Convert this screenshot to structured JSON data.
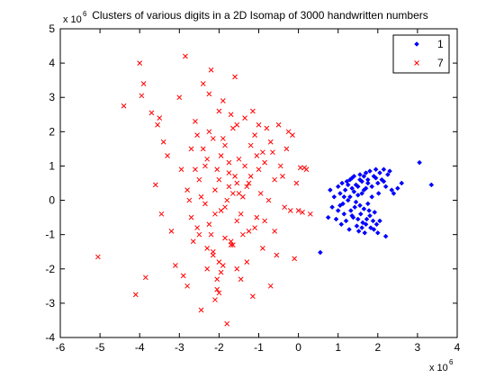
{
  "chart_data": {
    "type": "scatter",
    "title": "Clusters of various digits in a 2D Isomap of 3000 handwritten numbers",
    "xlabel": "",
    "ylabel": "",
    "xlim": [
      -6,
      4
    ],
    "ylim": [
      -4,
      5
    ],
    "x_ticks": [
      -6,
      -5,
      -4,
      -3,
      -2,
      -1,
      0,
      1,
      2,
      3,
      4
    ],
    "y_ticks": [
      -4,
      -3,
      -2,
      -1,
      0,
      1,
      2,
      3,
      4,
      5
    ],
    "x_tick_labels": [
      "-6",
      "-5",
      "-4",
      "-3",
      "-2",
      "-1",
      "0",
      "1",
      "2",
      "3",
      "4"
    ],
    "y_tick_labels": [
      "-4",
      "-3",
      "-2",
      "-1",
      "0",
      "1",
      "2",
      "3",
      "4",
      "5"
    ],
    "x_exponent": {
      "base": "x 10",
      "power": "6"
    },
    "y_exponent": {
      "base": "x 10",
      "power": "6"
    },
    "grid": false,
    "legend_position": "top-right",
    "series": [
      {
        "name": "1",
        "marker": "diamond",
        "color": "#0000ff",
        "points": [
          [
            0.55,
            -1.52
          ],
          [
            0.75,
            -0.5
          ],
          [
            0.8,
            0.3
          ],
          [
            0.85,
            -0.2
          ],
          [
            0.9,
            0.1
          ],
          [
            0.95,
            -0.55
          ],
          [
            1.0,
            0.4
          ],
          [
            1.0,
            -0.3
          ],
          [
            1.05,
            0.2
          ],
          [
            1.08,
            -0.7
          ],
          [
            1.1,
            0.5
          ],
          [
            1.12,
            -0.1
          ],
          [
            1.15,
            -0.4
          ],
          [
            1.18,
            0.3
          ],
          [
            1.2,
            -0.6
          ],
          [
            1.22,
            0.55
          ],
          [
            1.25,
            0.0
          ],
          [
            1.28,
            -0.85
          ],
          [
            1.3,
            0.6
          ],
          [
            1.32,
            -0.3
          ],
          [
            1.35,
            0.35
          ],
          [
            1.38,
            -0.5
          ],
          [
            1.4,
            0.7
          ],
          [
            1.42,
            -0.2
          ],
          [
            1.45,
            0.45
          ],
          [
            1.47,
            -0.75
          ],
          [
            1.5,
            0.15
          ],
          [
            1.52,
            -0.9
          ],
          [
            1.55,
            0.75
          ],
          [
            1.57,
            -0.4
          ],
          [
            1.6,
            0.55
          ],
          [
            1.62,
            -0.65
          ],
          [
            1.65,
            0.3
          ],
          [
            1.67,
            -0.95
          ],
          [
            1.7,
            0.8
          ],
          [
            1.72,
            -0.55
          ],
          [
            1.75,
            0.6
          ],
          [
            1.78,
            -0.3
          ],
          [
            1.8,
            0.85
          ],
          [
            1.82,
            -0.8
          ],
          [
            1.85,
            0.4
          ],
          [
            1.88,
            -0.6
          ],
          [
            1.9,
            0.7
          ],
          [
            1.92,
            -0.35
          ],
          [
            1.95,
            0.9
          ],
          [
            1.97,
            -0.7
          ],
          [
            2.0,
            0.5
          ],
          [
            2.02,
            0.2
          ],
          [
            2.05,
            0.8
          ],
          [
            2.1,
            0.6
          ],
          [
            2.15,
            0.9
          ],
          [
            2.2,
            0.4
          ],
          [
            2.25,
            0.75
          ],
          [
            2.3,
            0.85
          ],
          [
            2.35,
            0.3
          ],
          [
            2.4,
            0.2
          ],
          [
            1.3,
            0.1
          ],
          [
            1.4,
            0.25
          ],
          [
            1.5,
            0.4
          ],
          [
            1.6,
            0.2
          ],
          [
            1.7,
            0.35
          ],
          [
            1.45,
            -0.05
          ],
          [
            1.55,
            -0.15
          ],
          [
            1.65,
            -0.25
          ],
          [
            1.75,
            -0.1
          ],
          [
            1.85,
            0.1
          ],
          [
            1.35,
            -0.45
          ],
          [
            1.5,
            -0.55
          ],
          [
            1.6,
            -0.8
          ],
          [
            1.7,
            -0.7
          ],
          [
            1.8,
            -0.45
          ],
          [
            1.9,
            -0.85
          ],
          [
            2.0,
            -0.95
          ],
          [
            2.05,
            -0.6
          ],
          [
            1.25,
            0.45
          ],
          [
            1.35,
            0.65
          ],
          [
            1.55,
            0.6
          ],
          [
            1.65,
            0.7
          ],
          [
            1.75,
            0.5
          ],
          [
            1.95,
            0.65
          ],
          [
            2.15,
            0.55
          ],
          [
            2.5,
            0.35
          ],
          [
            2.6,
            0.5
          ],
          [
            3.05,
            1.1
          ],
          [
            3.35,
            0.45
          ],
          [
            2.2,
            -1.05
          ],
          [
            1.15,
            0.1
          ],
          [
            1.05,
            -0.15
          ]
        ]
      },
      {
        "name": "7",
        "marker": "x",
        "color": "#ff0000",
        "points": [
          [
            -5.05,
            -1.65
          ],
          [
            -4.4,
            2.75
          ],
          [
            -4.1,
            -2.75
          ],
          [
            -4.0,
            4.0
          ],
          [
            -3.95,
            3.05
          ],
          [
            -3.9,
            3.4
          ],
          [
            -3.85,
            -2.25
          ],
          [
            -3.7,
            2.55
          ],
          [
            -3.6,
            0.45
          ],
          [
            -3.55,
            2.2
          ],
          [
            -3.5,
            2.4
          ],
          [
            -3.45,
            -0.4
          ],
          [
            -3.4,
            1.7
          ],
          [
            -3.3,
            1.3
          ],
          [
            -3.2,
            -0.9
          ],
          [
            -3.1,
            -1.9
          ],
          [
            -3.0,
            3.0
          ],
          [
            -2.95,
            0.9
          ],
          [
            -2.9,
            -2.2
          ],
          [
            -2.85,
            4.2
          ],
          [
            -2.8,
            -2.5
          ],
          [
            -2.75,
            0.0
          ],
          [
            -2.7,
            1.5
          ],
          [
            -2.65,
            -1.2
          ],
          [
            -2.6,
            2.3
          ],
          [
            -2.55,
            -0.8
          ],
          [
            -2.5,
            0.6
          ],
          [
            -2.45,
            -3.2
          ],
          [
            -2.4,
            3.4
          ],
          [
            -2.35,
            1.0
          ],
          [
            -2.3,
            -2.0
          ],
          [
            -2.25,
            3.1
          ],
          [
            -2.2,
            3.8
          ],
          [
            -2.15,
            -1.5
          ],
          [
            -2.1,
            0.3
          ],
          [
            -2.05,
            -2.6
          ],
          [
            -2.0,
            2.6
          ],
          [
            -1.95,
            -0.3
          ],
          [
            -1.9,
            1.8
          ],
          [
            -1.85,
            -1.1
          ],
          [
            -1.8,
            -3.6
          ],
          [
            -1.75,
            0.8
          ],
          [
            -1.7,
            -1.3
          ],
          [
            -1.65,
            2.1
          ],
          [
            -1.6,
            3.6
          ],
          [
            -1.55,
            -0.6
          ],
          [
            -1.5,
            1.2
          ],
          [
            -1.45,
            -2.3
          ],
          [
            -1.4,
            0.1
          ],
          [
            -1.35,
            2.4
          ],
          [
            -1.3,
            -1.8
          ],
          [
            -1.25,
            0.5
          ],
          [
            -1.2,
            1.6
          ],
          [
            -1.15,
            -2.8
          ],
          [
            -1.1,
            1.9
          ],
          [
            -1.05,
            -0.5
          ],
          [
            -1.0,
            2.2
          ],
          [
            -0.95,
            0.2
          ],
          [
            -0.9,
            -1.4
          ],
          [
            -0.85,
            1.1
          ],
          [
            -0.8,
            2.1
          ],
          [
            -0.75,
            0.0
          ],
          [
            -0.7,
            -2.5
          ],
          [
            -0.65,
            1.4
          ],
          [
            -0.6,
            0.6
          ],
          [
            -0.55,
            -1.6
          ],
          [
            -0.5,
            2.2
          ],
          [
            -0.45,
            1.0
          ],
          [
            -0.4,
            0.7
          ],
          [
            -0.35,
            -0.2
          ],
          [
            -0.3,
            1.5
          ],
          [
            -0.25,
            2.0
          ],
          [
            -0.2,
            -0.3
          ],
          [
            -0.15,
            1.9
          ],
          [
            -0.1,
            -1.7
          ],
          [
            -0.05,
            0.5
          ],
          [
            0.0,
            -0.3
          ],
          [
            0.05,
            0.95
          ],
          [
            0.1,
            -0.35
          ],
          [
            0.15,
            0.95
          ],
          [
            0.2,
            0.9
          ],
          [
            0.3,
            -0.4
          ],
          [
            -2.0,
            -1.8
          ],
          [
            -1.95,
            -2.1
          ],
          [
            -2.05,
            -2.3
          ],
          [
            -1.9,
            -1.9
          ],
          [
            -1.7,
            -1.2
          ],
          [
            -1.65,
            -1.3
          ],
          [
            -2.25,
            -0.7
          ],
          [
            -2.2,
            -1.0
          ],
          [
            -2.1,
            -0.4
          ],
          [
            -1.85,
            -0.2
          ],
          [
            -1.75,
            0.4
          ],
          [
            -1.6,
            0.7
          ],
          [
            -1.5,
            0.2
          ],
          [
            -1.45,
            -0.4
          ],
          [
            -1.35,
            1.0
          ],
          [
            -1.3,
            0.4
          ],
          [
            -1.25,
            -0.9
          ],
          [
            -1.2,
            0.7
          ],
          [
            -2.4,
            1.5
          ],
          [
            -2.3,
            1.2
          ],
          [
            -2.15,
            1.8
          ],
          [
            -2.05,
            0.9
          ],
          [
            -1.95,
            1.3
          ],
          [
            -1.85,
            1.6
          ],
          [
            -1.75,
            1.1
          ],
          [
            -1.65,
            0.2
          ],
          [
            -2.45,
            0.1
          ],
          [
            -2.35,
            -0.1
          ],
          [
            -2.3,
            -1.4
          ],
          [
            -2.15,
            -1.6
          ],
          [
            -2.5,
            -1.0
          ],
          [
            -2.6,
            0.9
          ],
          [
            -2.7,
            -0.5
          ],
          [
            -2.8,
            0.3
          ],
          [
            -1.55,
            -2.0
          ],
          [
            -1.4,
            -1.0
          ],
          [
            -1.1,
            -0.8
          ],
          [
            -1.0,
            0.9
          ],
          [
            -0.9,
            1.4
          ],
          [
            -0.85,
            -0.6
          ],
          [
            -0.7,
            1.7
          ],
          [
            -0.6,
            -0.9
          ],
          [
            -1.15,
            2.6
          ],
          [
            -1.05,
            1.3
          ],
          [
            -2.0,
            -2.7
          ],
          [
            -2.1,
            -2.9
          ],
          [
            -1.9,
            2.9
          ],
          [
            -1.7,
            2.5
          ],
          [
            -1.55,
            2.2
          ],
          [
            -2.55,
            1.9
          ],
          [
            -2.25,
            2.0
          ],
          [
            -2.0,
            0.6
          ],
          [
            -1.8,
            0.0
          ],
          [
            -1.55,
            0.5
          ]
        ]
      }
    ]
  }
}
